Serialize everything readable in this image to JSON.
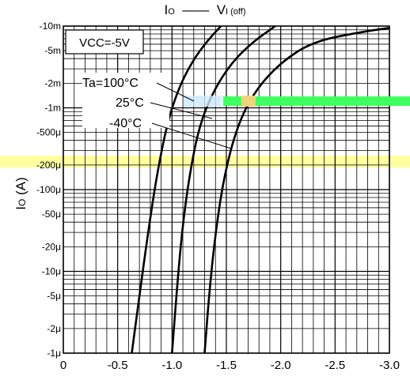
{
  "chart_data": {
    "type": "line",
    "title": {
      "left_main": "I",
      "left_sub": "O",
      "right_main": "V",
      "right_sub": "I (off)"
    },
    "ylabel": {
      "main": "I",
      "sub": "O",
      "unit": " (A)"
    },
    "xlabel": "",
    "y_scale": "log",
    "x_scale": "linear",
    "xlim": [
      0,
      -3.0
    ],
    "ylim": [
      1e-06,
      0.01
    ],
    "grid": true,
    "x_ticks": [
      {
        "value": 0,
        "label": "0"
      },
      {
        "value": -0.5,
        "label": "-0.5"
      },
      {
        "value": -1.0,
        "label": "-1.0"
      },
      {
        "value": -1.5,
        "label": "-1.5"
      },
      {
        "value": -2.0,
        "label": "-2.0"
      },
      {
        "value": -2.5,
        "label": "-2.5"
      },
      {
        "value": -3.0,
        "label": "-3.0"
      }
    ],
    "y_ticks": [
      {
        "value": 0.01,
        "label": "-10m"
      },
      {
        "value": 0.005,
        "label": "-5m"
      },
      {
        "value": 0.002,
        "label": "-2m"
      },
      {
        "value": 0.001,
        "label": "-1m"
      },
      {
        "value": 0.0005,
        "label": "-500μ"
      },
      {
        "value": 0.0002,
        "label": "-200μ"
      },
      {
        "value": 0.0001,
        "label": "-100μ"
      },
      {
        "value": 5e-05,
        "label": "-50μ"
      },
      {
        "value": 2e-05,
        "label": "-20μ"
      },
      {
        "value": 1e-05,
        "label": "-10μ"
      },
      {
        "value": 5e-06,
        "label": "-5μ"
      },
      {
        "value": 2e-06,
        "label": "-2μ"
      },
      {
        "value": 1e-06,
        "label": "-1μ"
      }
    ],
    "condition": "VCC=-5V",
    "series": [
      {
        "name": "Ta=100°C",
        "points": [
          [
            -0.63,
            1e-06
          ],
          [
            -0.7,
            5e-06
          ],
          [
            -0.78,
            3e-05
          ],
          [
            -0.86,
            0.00015
          ],
          [
            -0.95,
            0.0006
          ],
          [
            -1.05,
            0.0016
          ],
          [
            -1.18,
            0.0036
          ],
          [
            -1.32,
            0.0065
          ],
          [
            -1.45,
            0.01
          ]
        ]
      },
      {
        "name": "25°C",
        "points": [
          [
            -1.0,
            1e-06
          ],
          [
            -1.04,
            5e-06
          ],
          [
            -1.09,
            3e-05
          ],
          [
            -1.16,
            0.00015
          ],
          [
            -1.25,
            0.0006
          ],
          [
            -1.38,
            0.0016
          ],
          [
            -1.55,
            0.0036
          ],
          [
            -1.75,
            0.0065
          ],
          [
            -1.95,
            0.01
          ]
        ]
      },
      {
        "name": "-40°C",
        "points": [
          [
            -1.3,
            1e-06
          ],
          [
            -1.34,
            5e-06
          ],
          [
            -1.4,
            3e-05
          ],
          [
            -1.48,
            0.00015
          ],
          [
            -1.6,
            0.0006
          ],
          [
            -1.76,
            0.0016
          ],
          [
            -2.0,
            0.0036
          ],
          [
            -2.3,
            0.0065
          ],
          [
            -2.75,
            0.0085
          ],
          [
            -3.0,
            0.0095
          ]
        ]
      }
    ]
  },
  "colors": {
    "line": "#000000",
    "grid": "#000000",
    "band": "#ffffa0",
    "marker_green": "#40ff60"
  }
}
